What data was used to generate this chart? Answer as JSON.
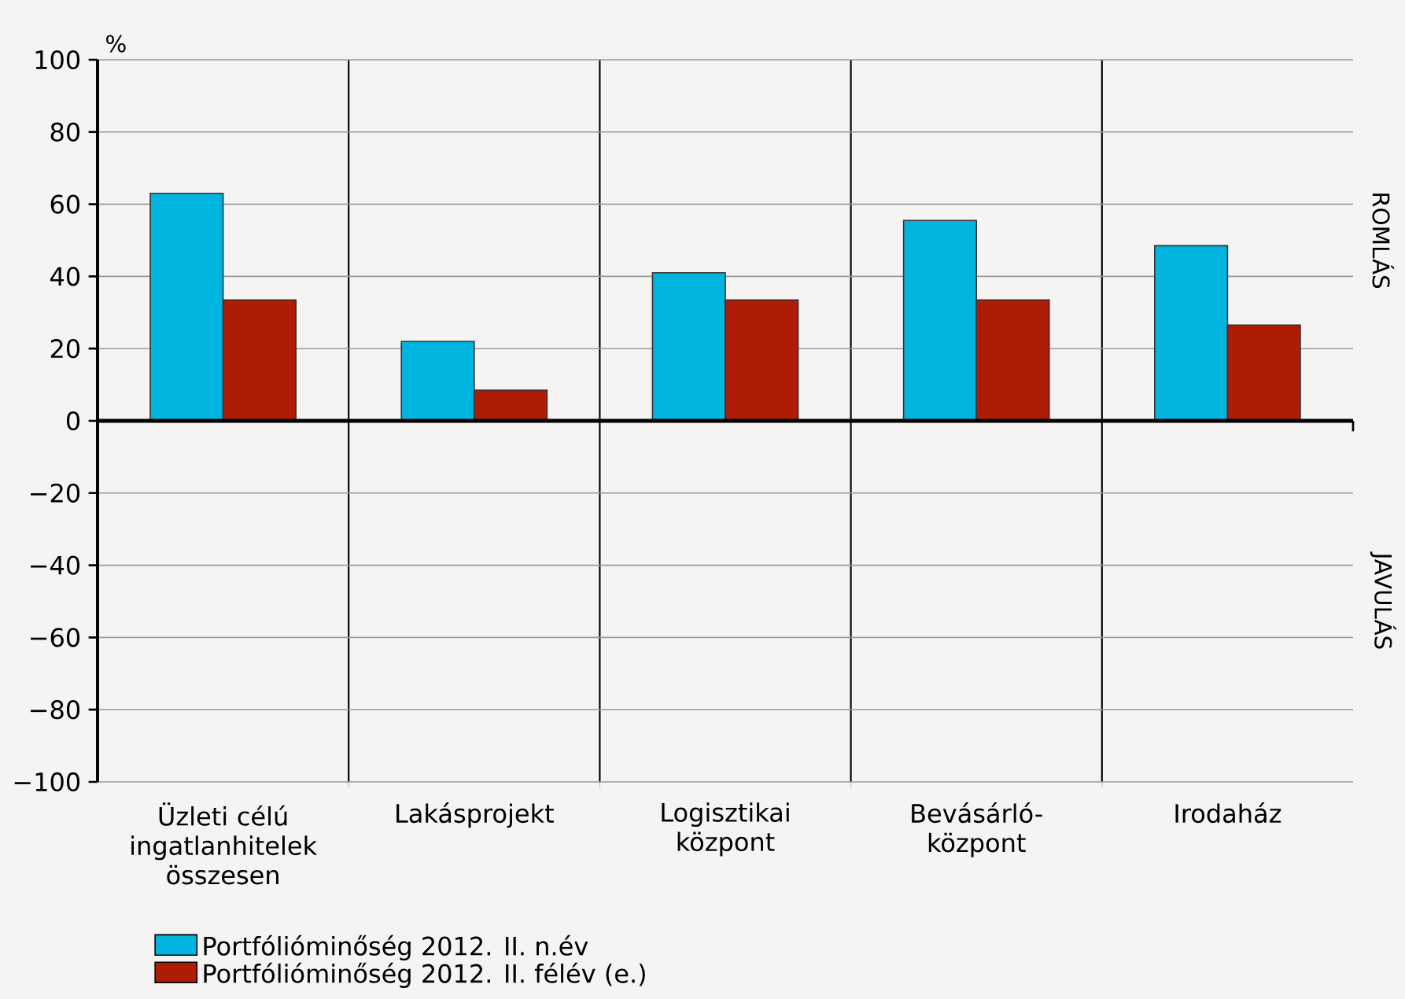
{
  "chart_data": {
    "type": "bar",
    "ylabel": "%",
    "categories": [
      "Üzleti célú ingatlanhitelek összesen",
      "Lakásprojekt",
      "Logisztikai központ",
      "Bevásárló-központ",
      "Irodaház"
    ],
    "series": [
      {
        "name": "Portfólióminőség 2012. II. n.év",
        "color": "#00b4e0",
        "values": [
          63,
          22,
          41,
          55.5,
          48.5
        ]
      },
      {
        "name": "Portfólióminőség 2012. II. félév (e.)",
        "color": "#ae1c05",
        "values": [
          33.5,
          8.5,
          33.5,
          33.5,
          26.5
        ]
      }
    ],
    "ylim": [
      -100,
      100
    ],
    "yticks": [
      {
        "value": -100,
        "label": "−100"
      },
      {
        "value": -80,
        "label": "−80"
      },
      {
        "value": -60,
        "label": "−60"
      },
      {
        "value": -40,
        "label": "−40"
      },
      {
        "value": -20,
        "label": "−20"
      },
      0,
      20,
      40,
      60,
      80,
      100
    ],
    "grid": "y",
    "legend": "bottom left",
    "annotations": [
      "ROMLÁS",
      "JAVULÁS"
    ]
  }
}
